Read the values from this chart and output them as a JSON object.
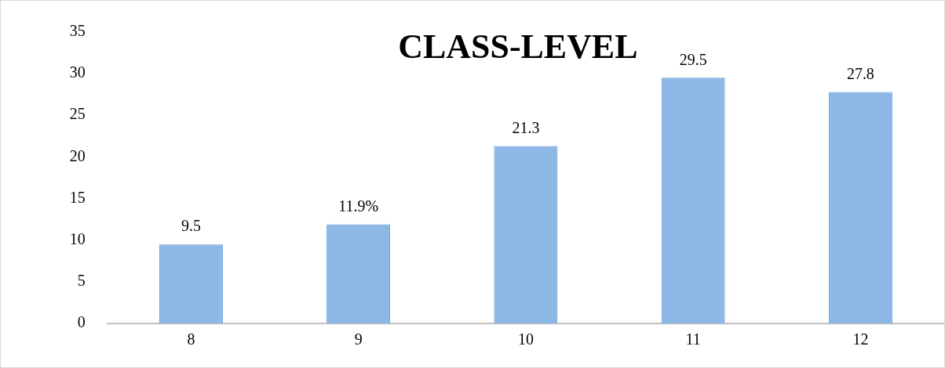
{
  "chart_data": {
    "type": "bar",
    "title": "CLASS-LEVEL",
    "categories": [
      "8",
      "9",
      "10",
      "11",
      "12"
    ],
    "values": [
      9.5,
      11.9,
      21.3,
      29.5,
      27.8
    ],
    "value_labels": [
      "9.5",
      "11.9%",
      "21.3",
      "29.5",
      "27.8"
    ],
    "color": "#8db8e6",
    "ylim": [
      0,
      35
    ],
    "yticks": [
      0,
      5,
      10,
      15,
      20,
      25,
      30,
      35
    ],
    "grid": false,
    "legend": false
  }
}
